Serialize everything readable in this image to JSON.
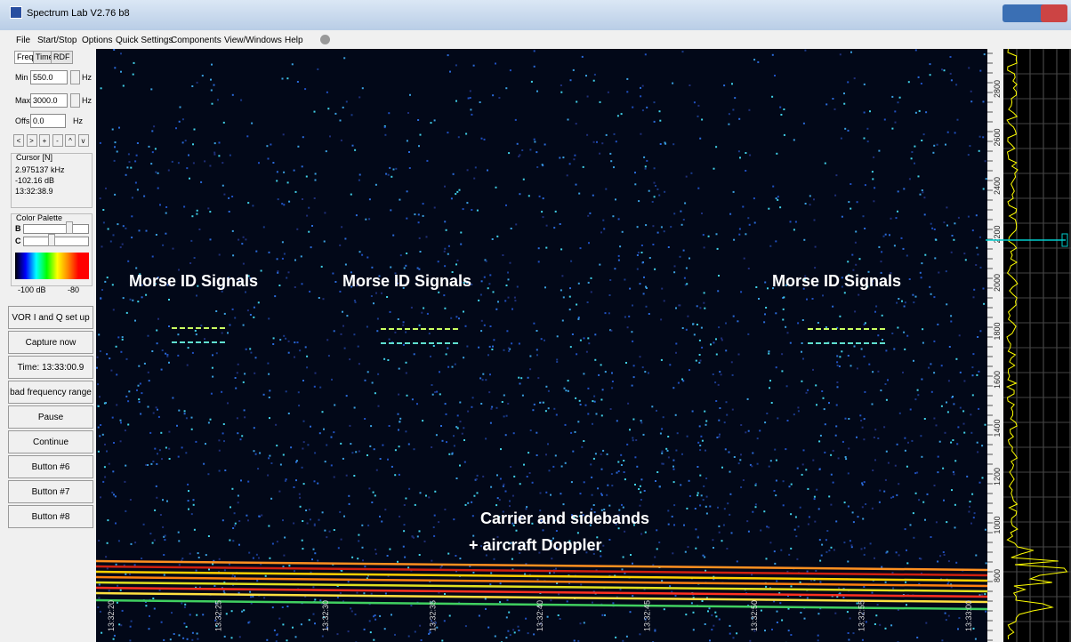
{
  "window": {
    "title": "Spectrum Lab V2.76 b8"
  },
  "menu": [
    "File",
    "Start/Stop",
    "Options",
    "Quick Settings",
    "Components",
    "View/Windows",
    "Help"
  ],
  "tabs": [
    "Freq",
    "Time",
    "RDF"
  ],
  "freq_settings": [
    {
      "label": "Min",
      "value": "550.0",
      "unit": "Hz"
    },
    {
      "label": "Max",
      "value": "3000.0",
      "unit": "Hz"
    },
    {
      "label": "Offs",
      "value": "0.0",
      "unit": "Hz"
    }
  ],
  "nav_buttons": [
    "<",
    ">",
    "+",
    "-",
    "^",
    "v"
  ],
  "cursor": {
    "title": "Cursor [N]",
    "lines": [
      "2.975137 kHz",
      "-102.16 dB",
      "13:32:38.9"
    ]
  },
  "palette": {
    "title": "Color Palette",
    "sliders": [
      "B",
      "C"
    ],
    "scale": [
      "-100 dB",
      "-80"
    ]
  },
  "buttons": [
    "VOR I and Q set up",
    "Capture now",
    "Time:  13:33:00.9",
    "bad frequency range",
    "Pause",
    "Continue",
    "Button #6",
    "Button #7",
    "Button #8"
  ],
  "annotations": [
    "Morse ID Signals",
    "Morse ID Signals",
    "Morse ID Signals",
    "Carrier and sidebands",
    "+ aircraft Doppler"
  ],
  "time_labels": [
    "13:32:20",
    "13:32:25",
    "13:32:30",
    "13:32:35",
    "13:32:40",
    "13:32:45",
    "13:32:50",
    "13:32:55",
    "13:33:00"
  ],
  "freq_labels": [
    "2800",
    "2600",
    "2400",
    "2200",
    "2000",
    "1800",
    "1600",
    "1400",
    "1200",
    "1000",
    "800"
  ]
}
